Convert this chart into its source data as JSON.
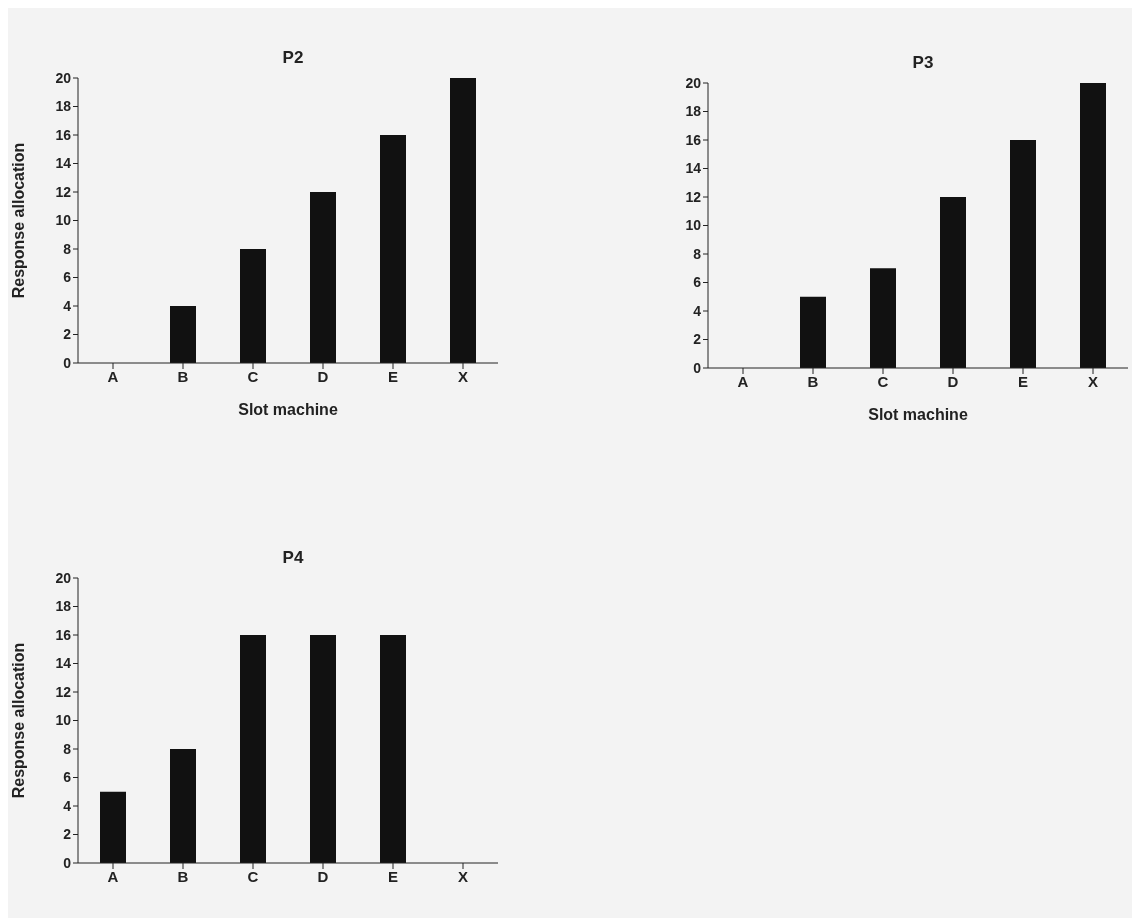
{
  "chart_data": [
    {
      "type": "bar",
      "title": "P2",
      "xlabel": "Slot machine",
      "ylabel": "Response allocation",
      "categories": [
        "A",
        "B",
        "C",
        "D",
        "E",
        "X"
      ],
      "values": [
        0,
        4,
        8,
        12,
        16,
        20
      ],
      "color": "#111111",
      "ylim": [
        0,
        20
      ],
      "yticks": [
        0,
        2,
        4,
        6,
        8,
        10,
        12,
        14,
        16,
        18,
        20
      ]
    },
    {
      "type": "bar",
      "title": "P3",
      "xlabel": "Slot machine",
      "categories": [
        "A",
        "B",
        "C",
        "D",
        "E",
        "X"
      ],
      "values": [
        0,
        5,
        7,
        12,
        16,
        20
      ],
      "color": "#111111",
      "ylim": [
        0,
        20
      ],
      "yticks": [
        0,
        2,
        4,
        6,
        8,
        10,
        12,
        14,
        16,
        18,
        20
      ]
    },
    {
      "type": "bar",
      "title": "P4",
      "ylabel": "Response allocation",
      "categories": [
        "A",
        "B",
        "C",
        "D",
        "E",
        "X"
      ],
      "values": [
        5,
        8,
        16,
        16,
        16,
        0
      ],
      "color": "#111111",
      "ylim": [
        0,
        20
      ],
      "yticks": [
        0,
        2,
        4,
        6,
        8,
        10,
        12,
        14,
        16,
        18,
        20
      ]
    }
  ]
}
